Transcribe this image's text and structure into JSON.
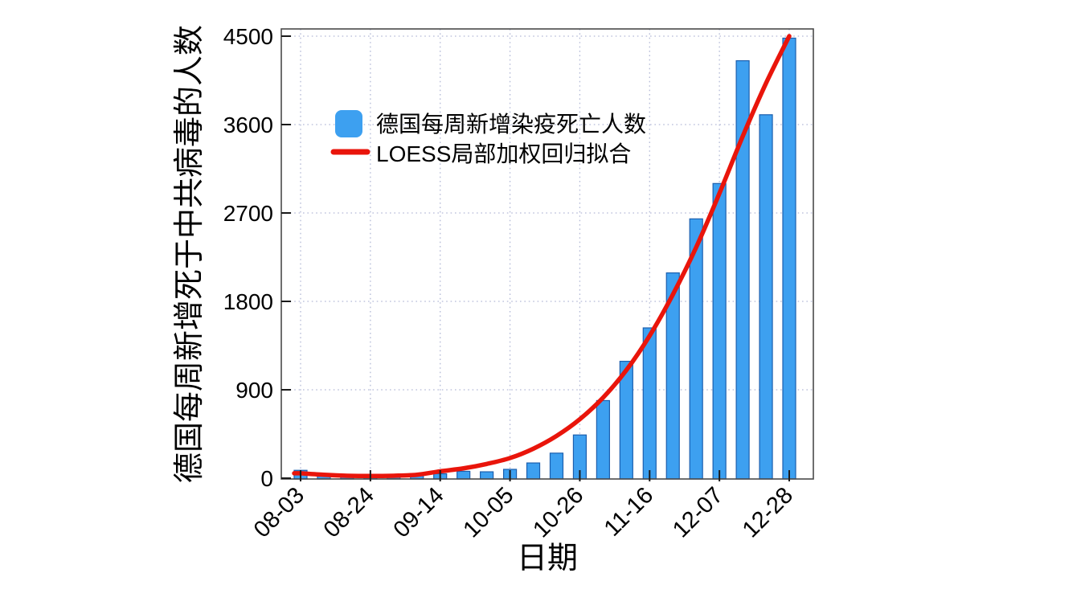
{
  "page": {
    "background": "#ffffff"
  },
  "chart_data": {
    "type": "bar",
    "title": "",
    "xlabel": "日期",
    "ylabel": "德国每周新增死于中共病毒的人数",
    "categories": [
      "08-03",
      "08-10",
      "08-17",
      "08-24",
      "08-31",
      "09-07",
      "09-14",
      "09-21",
      "09-28",
      "10-05",
      "10-12",
      "10-19",
      "10-26",
      "11-02",
      "11-09",
      "11-16",
      "11-23",
      "11-30",
      "12-07",
      "12-14",
      "12-21",
      "12-28"
    ],
    "x_tick_labels": [
      "08-03",
      "08-24",
      "09-14",
      "10-05",
      "10-26",
      "11-16",
      "12-07",
      "12-28"
    ],
    "y_ticks": [
      0,
      900,
      1800,
      2700,
      3600,
      4500
    ],
    "ylim": [
      0,
      4500
    ],
    "grid": "dotted",
    "legend_position": "upper-left-inside",
    "series": [
      {
        "name": "德国每周新增染疫死亡人数",
        "type": "bar",
        "color": "#3da0f0",
        "edge_color": "#1c5fae",
        "values": [
          80,
          25,
          25,
          20,
          25,
          30,
          45,
          70,
          65,
          90,
          155,
          255,
          440,
          790,
          1190,
          1530,
          2090,
          2640,
          3000,
          4250,
          3700,
          4480
        ]
      },
      {
        "name": "LOESS局部加权回归拟合",
        "type": "line",
        "color": "#e9150b",
        "values": [
          50,
          35,
          25,
          22,
          25,
          35,
          70,
          100,
          145,
          205,
          300,
          430,
          600,
          820,
          1100,
          1450,
          1870,
          2350,
          2900,
          3480,
          4020,
          4500
        ]
      }
    ],
    "style": {
      "grid_color": "#b3b9d6",
      "border_color": "#4a4a4a",
      "tick_color": "#1a1a1a",
      "text_color": "#000000"
    }
  }
}
